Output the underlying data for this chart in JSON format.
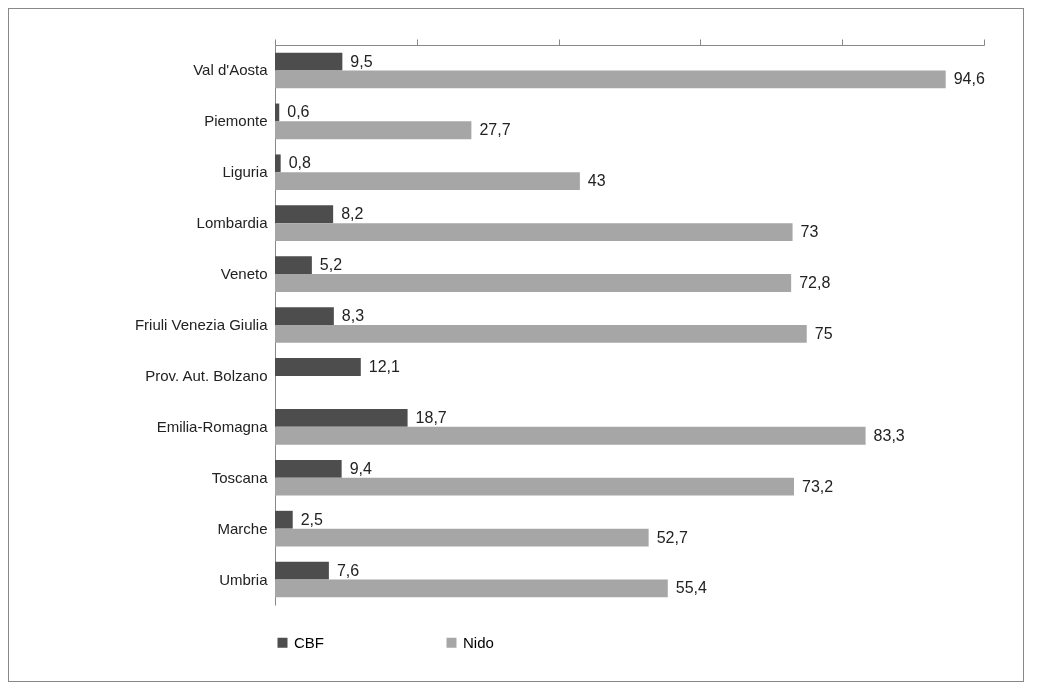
{
  "chart_data": {
    "type": "bar",
    "orientation": "horizontal",
    "categories": [
      "Val d'Aosta",
      "Piemonte",
      "Liguria",
      "Lombardia",
      "Veneto",
      "Friuli Venezia Giulia",
      "Prov. Aut. Bolzano",
      "Emilia-Romagna",
      "Toscana",
      "Marche",
      "Umbria"
    ],
    "series": [
      {
        "name": "CBF",
        "color": "#4d4d4d",
        "values": [
          9.5,
          0.6,
          0.8,
          8.2,
          5.2,
          8.3,
          12.1,
          18.7,
          9.4,
          2.5,
          7.6
        ],
        "value_labels": [
          "9,5",
          "0,6",
          "0,8",
          "8,2",
          "5,2",
          "8,3",
          "12,1",
          "18,7",
          "9,4",
          "2,5",
          "7,6"
        ]
      },
      {
        "name": "Nido",
        "color": "#a6a6a6",
        "values": [
          94.6,
          27.7,
          43,
          73,
          72.8,
          75,
          null,
          83.3,
          73.2,
          52.7,
          55.4
        ],
        "value_labels": [
          "94,6",
          "27,7",
          "43",
          "73",
          "72,8",
          "75",
          null,
          "83,3",
          "73,2",
          "52,7",
          "55,4"
        ]
      }
    ],
    "xlim": [
      0,
      100
    ],
    "xticks": [
      {
        "value": 0,
        "label": null
      },
      {
        "value": 20,
        "label": null
      },
      {
        "value": 40,
        "label": null
      },
      {
        "value": 60,
        "label": null
      },
      {
        "value": 80,
        "label": null
      },
      {
        "value": 100,
        "label": null
      }
    ],
    "tick_labels": "y",
    "grid": false,
    "legend": "bottom"
  }
}
